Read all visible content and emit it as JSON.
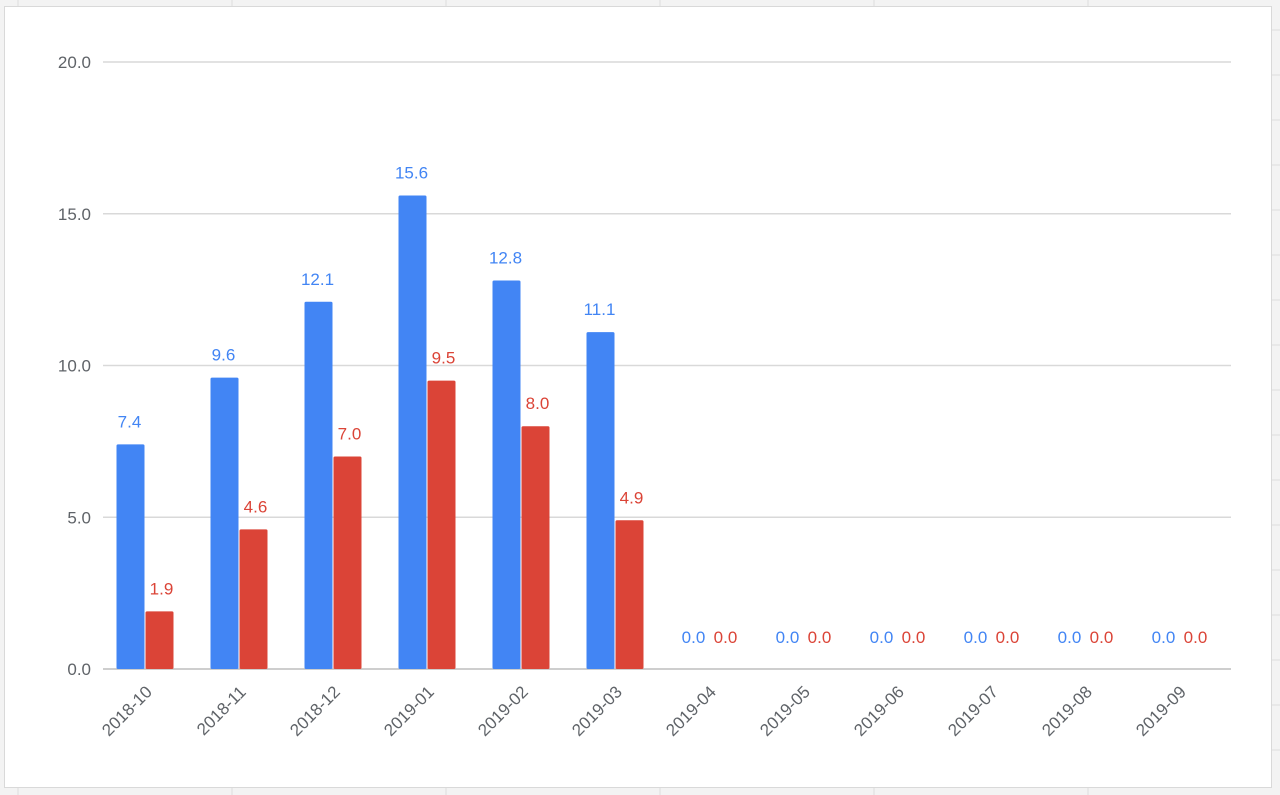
{
  "chart_data": {
    "type": "bar",
    "categories": [
      "2018-10",
      "2018-11",
      "2018-12",
      "2019-01",
      "2019-02",
      "2019-03",
      "2019-04",
      "2019-05",
      "2019-06",
      "2019-07",
      "2019-08",
      "2019-09"
    ],
    "series": [
      {
        "color": "#4285f4",
        "values": [
          7.4,
          9.6,
          12.1,
          15.6,
          12.8,
          11.1,
          0.0,
          0.0,
          0.0,
          0.0,
          0.0,
          0.0
        ],
        "labels": [
          "7.4",
          "9.6",
          "12.1",
          "15.6",
          "12.8",
          "11.1",
          "0.0",
          "0.0",
          "0.0",
          "0.0",
          "0.0",
          "0.0"
        ]
      },
      {
        "color": "#db4437",
        "values": [
          1.9,
          4.6,
          7.0,
          9.5,
          8.0,
          4.9,
          0.0,
          0.0,
          0.0,
          0.0,
          0.0,
          0.0
        ],
        "labels": [
          "1.9",
          "4.6",
          "7.0",
          "9.5",
          "8.0",
          "4.9",
          "0.0",
          "0.0",
          "0.0",
          "0.0",
          "0.0",
          "0.0"
        ]
      }
    ],
    "y_ticks": [
      "0.0",
      "5.0",
      "10.0",
      "15.0",
      "20.0"
    ],
    "ylim": [
      0,
      20
    ],
    "title": "",
    "xlabel": "",
    "ylabel": "",
    "grid": true,
    "legend": "none"
  }
}
